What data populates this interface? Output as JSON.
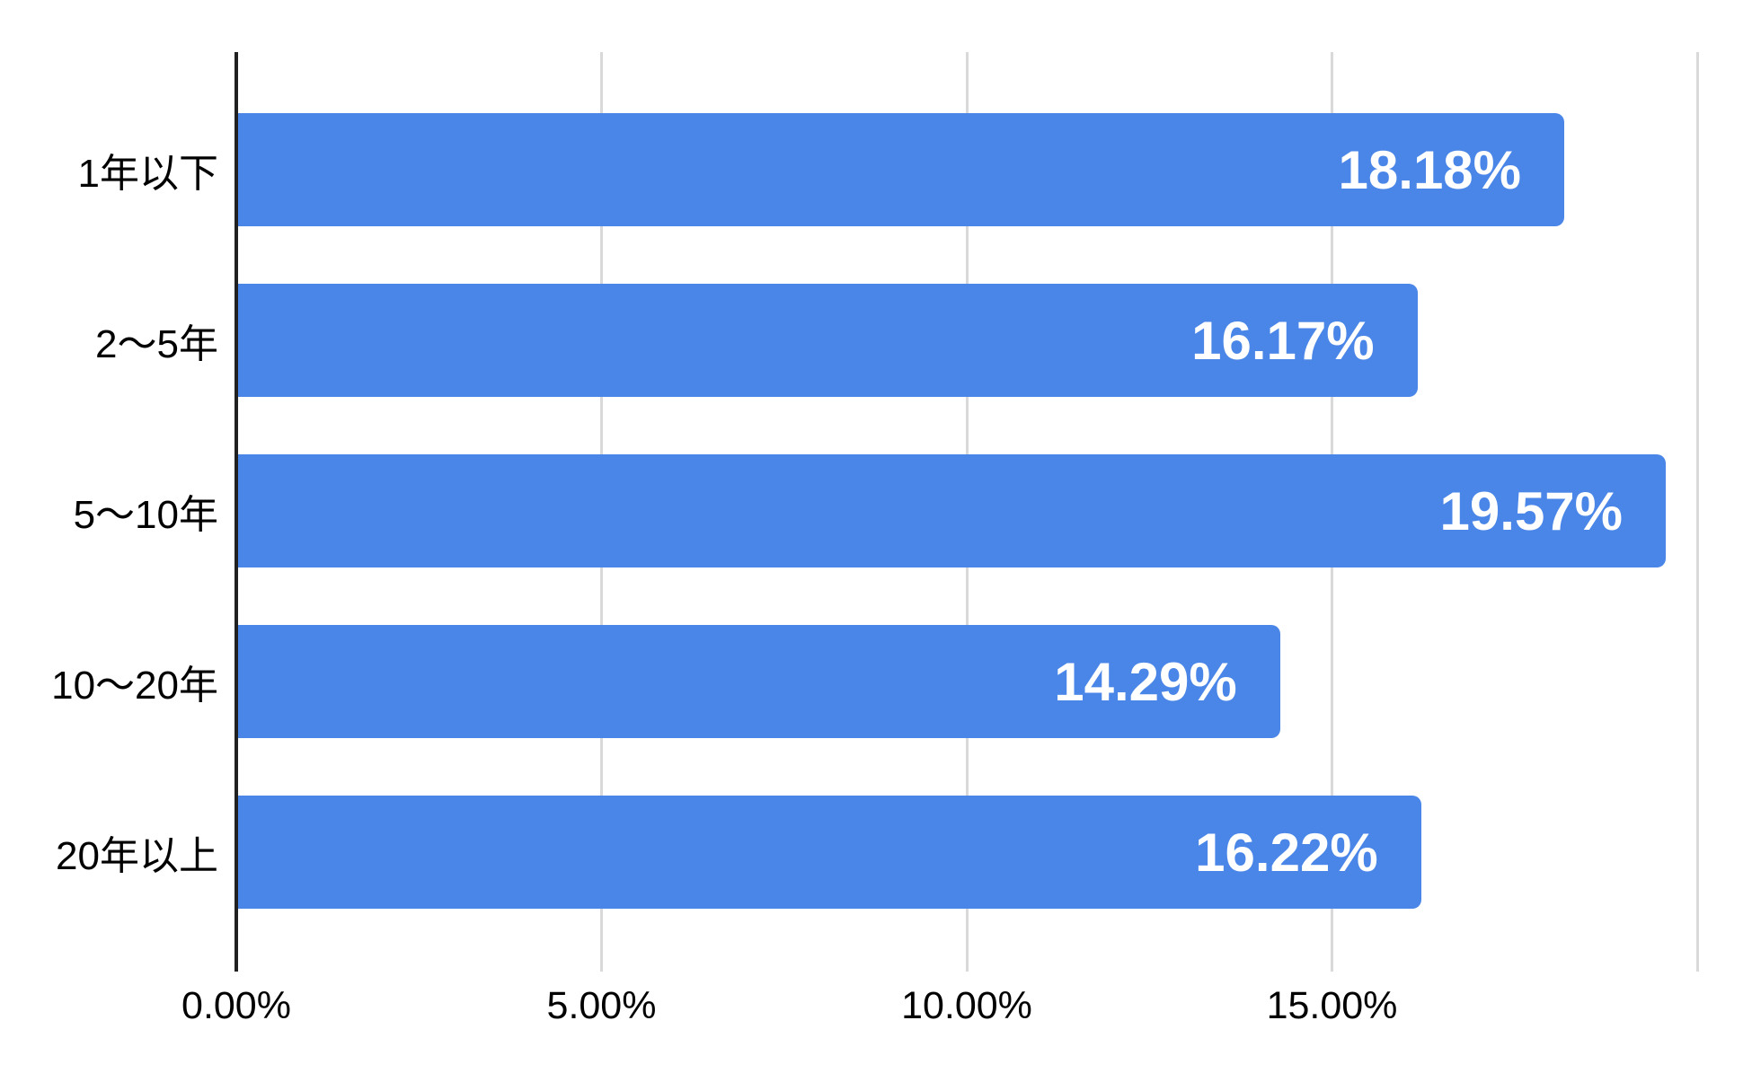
{
  "chart_data": {
    "type": "bar",
    "orientation": "horizontal",
    "title": "",
    "categories": [
      "1年以下",
      "2〜5年",
      "5〜10年",
      "10〜20年",
      "20年以上"
    ],
    "values": [
      18.18,
      16.17,
      19.57,
      14.29,
      16.22
    ],
    "value_labels": [
      "18.18%",
      "16.17%",
      "19.57%",
      "14.29%",
      "16.22%"
    ],
    "xlabel": "",
    "ylabel": "",
    "xlim": [
      0,
      20
    ],
    "x_ticks": [
      {
        "value": 0,
        "label": "0.00%"
      },
      {
        "value": 5,
        "label": "5.00%"
      },
      {
        "value": 10,
        "label": "10.00%"
      },
      {
        "value": 15,
        "label": "15.00%"
      },
      {
        "value": 20,
        "label": ""
      }
    ],
    "grid": true,
    "legend": "none",
    "colors": {
      "bar": "#4a86e8",
      "value_label": "#ffffff",
      "axis_line": "#212121",
      "gridline": "#d9d9d9",
      "tick_label": "#000000",
      "category_label": "#000000",
      "background": "#ffffff"
    }
  }
}
